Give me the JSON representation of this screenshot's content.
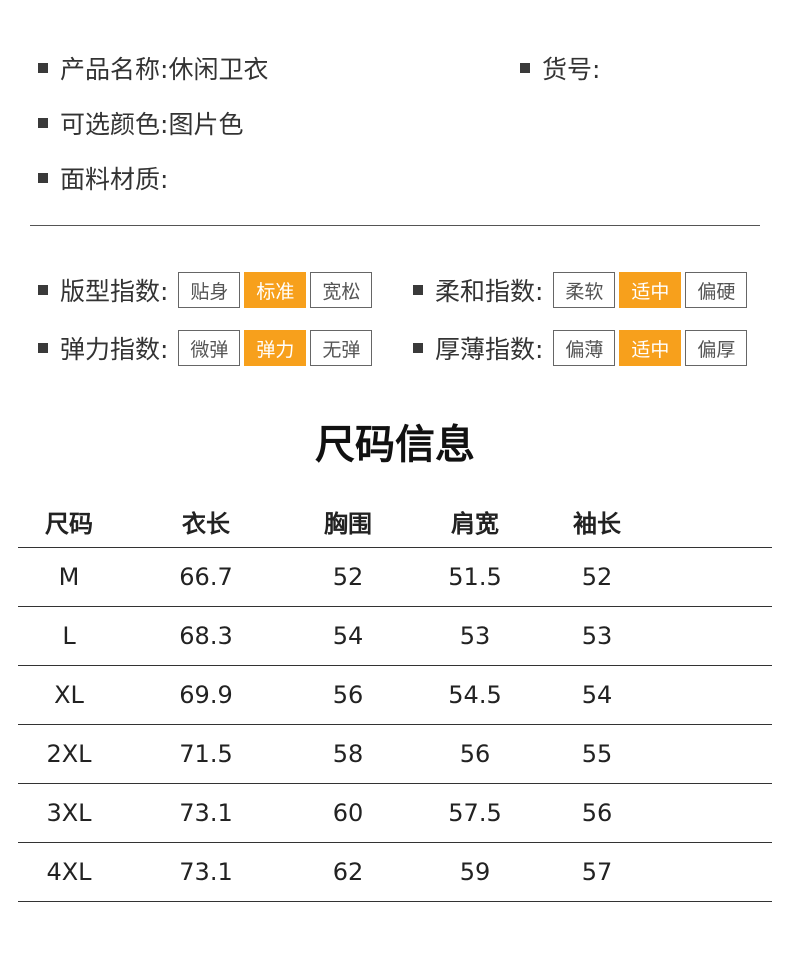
{
  "info": {
    "name_label": "产品名称:",
    "name_value": "休闲卫衣",
    "sku_label": "货号:",
    "color_label": "可选颜色:",
    "color_value": "图片色",
    "fabric_label": "面料材质:"
  },
  "indices": [
    {
      "label": "版型指数:",
      "options": [
        "贴身",
        "标准",
        "宽松"
      ],
      "selected": 1
    },
    {
      "label": "柔和指数:",
      "options": [
        "柔软",
        "适中",
        "偏硬"
      ],
      "selected": 1
    },
    {
      "label": "弹力指数:",
      "options": [
        "微弹",
        "弹力",
        "无弹"
      ],
      "selected": 1
    },
    {
      "label": "厚薄指数:",
      "options": [
        "偏薄",
        "适中",
        "偏厚"
      ],
      "selected": 1
    }
  ],
  "accent_color": "#f7a01c",
  "size_title": "尺码信息",
  "table": {
    "headers": [
      "尺码",
      "衣长",
      "胸围",
      "肩宽",
      "袖长"
    ],
    "rows": [
      [
        "M",
        "66.7",
        "52",
        "51.5",
        "52"
      ],
      [
        "L",
        "68.3",
        "54",
        "53",
        "53"
      ],
      [
        "XL",
        "69.9",
        "56",
        "54.5",
        "54"
      ],
      [
        "2XL",
        "71.5",
        "58",
        "56",
        "55"
      ],
      [
        "3XL",
        "73.1",
        "60",
        "57.5",
        "56"
      ],
      [
        "4XL",
        "73.1",
        "62",
        "59",
        "57"
      ]
    ]
  }
}
